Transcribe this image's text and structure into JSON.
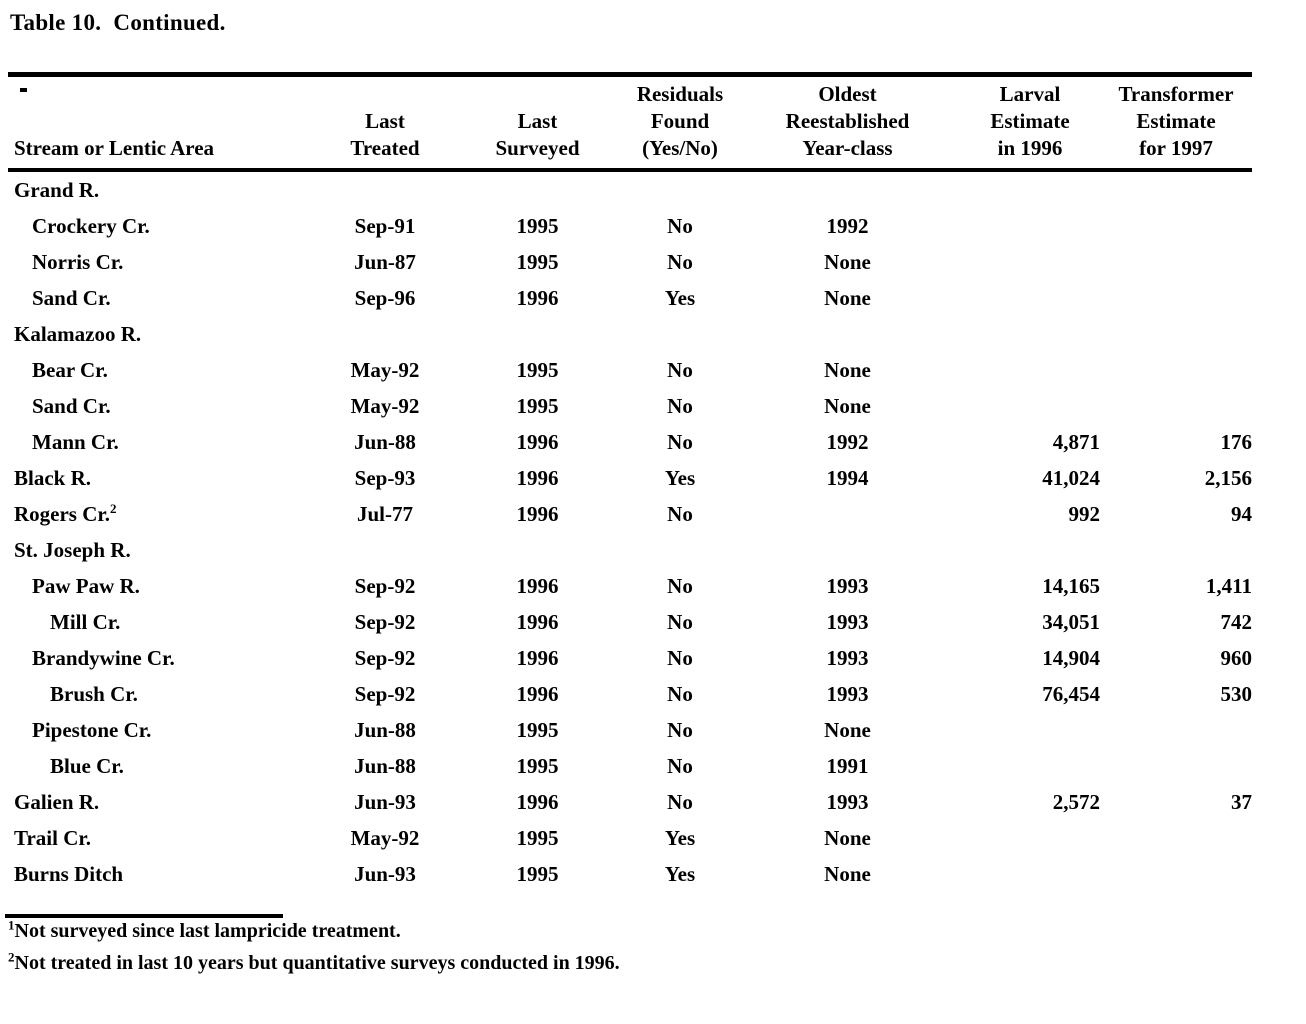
{
  "page": {
    "title": "Table 10.  Continued."
  },
  "table": {
    "columns": [
      {
        "id": "stream",
        "lines": [
          "Stream or Lentic Area"
        ]
      },
      {
        "id": "last_treated",
        "lines": [
          "Last",
          "Treated"
        ]
      },
      {
        "id": "last_surveyed",
        "lines": [
          "Last",
          "Surveyed"
        ]
      },
      {
        "id": "residuals_found",
        "lines": [
          "Residuals",
          "Found",
          "(Yes/No)"
        ]
      },
      {
        "id": "oldest_year_class",
        "lines": [
          "Oldest",
          "Reestablished",
          "Year-class"
        ]
      },
      {
        "id": "larval_estimate_1996",
        "lines": [
          "Larval",
          "Estimate",
          "in 1996"
        ]
      },
      {
        "id": "transformer_estimate_1997",
        "lines": [
          "Transformer",
          "Estimate",
          "for 1997"
        ]
      }
    ],
    "rows": [
      {
        "name": "Grand R.",
        "indent": 0,
        "last_treated": "",
        "last_surveyed": "",
        "residuals_found": "",
        "oldest_year_class": "",
        "larval_estimate_1996": "",
        "transformer_estimate_1997": ""
      },
      {
        "name": "Crockery Cr.",
        "indent": 1,
        "last_treated": "Sep-91",
        "last_surveyed": "1995",
        "residuals_found": "No",
        "oldest_year_class": "1992",
        "larval_estimate_1996": "",
        "transformer_estimate_1997": ""
      },
      {
        "name": "Norris Cr.",
        "indent": 1,
        "last_treated": "Jun-87",
        "last_surveyed": "1995",
        "residuals_found": "No",
        "oldest_year_class": "None",
        "larval_estimate_1996": "",
        "transformer_estimate_1997": ""
      },
      {
        "name": "Sand Cr.",
        "indent": 1,
        "last_treated": "Sep-96",
        "last_surveyed": "1996",
        "residuals_found": "Yes",
        "oldest_year_class": "None",
        "larval_estimate_1996": "",
        "transformer_estimate_1997": ""
      },
      {
        "name": "Kalamazoo R.",
        "indent": 0,
        "last_treated": "",
        "last_surveyed": "",
        "residuals_found": "",
        "oldest_year_class": "",
        "larval_estimate_1996": "",
        "transformer_estimate_1997": ""
      },
      {
        "name": "Bear Cr.",
        "indent": 1,
        "last_treated": "May-92",
        "last_surveyed": "1995",
        "residuals_found": "No",
        "oldest_year_class": "None",
        "larval_estimate_1996": "",
        "transformer_estimate_1997": ""
      },
      {
        "name": "Sand Cr.",
        "indent": 1,
        "last_treated": "May-92",
        "last_surveyed": "1995",
        "residuals_found": "No",
        "oldest_year_class": "None",
        "larval_estimate_1996": "",
        "transformer_estimate_1997": ""
      },
      {
        "name": "Mann Cr.",
        "indent": 1,
        "last_treated": "Jun-88",
        "last_surveyed": "1996",
        "residuals_found": "No",
        "oldest_year_class": "1992",
        "larval_estimate_1996": "4,871",
        "transformer_estimate_1997": "176"
      },
      {
        "name": "Black R.",
        "indent": 0,
        "last_treated": "Sep-93",
        "last_surveyed": "1996",
        "residuals_found": "Yes",
        "oldest_year_class": "1994",
        "larval_estimate_1996": "41,024",
        "transformer_estimate_1997": "2,156"
      },
      {
        "name": "Rogers Cr.",
        "name_sup": "2",
        "indent": 0,
        "last_treated": "Jul-77",
        "last_surveyed": "1996",
        "residuals_found": "No",
        "oldest_year_class": "",
        "larval_estimate_1996": "992",
        "transformer_estimate_1997": "94"
      },
      {
        "name": "St. Joseph R.",
        "indent": 0,
        "last_treated": "",
        "last_surveyed": "",
        "residuals_found": "",
        "oldest_year_class": "",
        "larval_estimate_1996": "",
        "transformer_estimate_1997": ""
      },
      {
        "name": "Paw Paw R.",
        "indent": 1,
        "last_treated": "Sep-92",
        "last_surveyed": "1996",
        "residuals_found": "No",
        "oldest_year_class": "1993",
        "larval_estimate_1996": "14,165",
        "transformer_estimate_1997": "1,411"
      },
      {
        "name": "Mill Cr.",
        "indent": 2,
        "last_treated": "Sep-92",
        "last_surveyed": "1996",
        "residuals_found": "No",
        "oldest_year_class": "1993",
        "larval_estimate_1996": "34,051",
        "transformer_estimate_1997": "742"
      },
      {
        "name": "Brandywine Cr.",
        "indent": 1,
        "last_treated": "Sep-92",
        "last_surveyed": "1996",
        "residuals_found": "No",
        "oldest_year_class": "1993",
        "larval_estimate_1996": "14,904",
        "transformer_estimate_1997": "960"
      },
      {
        "name": "Brush Cr.",
        "indent": 2,
        "last_treated": "Sep-92",
        "last_surveyed": "1996",
        "residuals_found": "No",
        "oldest_year_class": "1993",
        "larval_estimate_1996": "76,454",
        "transformer_estimate_1997": "530"
      },
      {
        "name": "Pipestone Cr.",
        "indent": 1,
        "last_treated": "Jun-88",
        "last_surveyed": "1995",
        "residuals_found": "No",
        "oldest_year_class": "None",
        "larval_estimate_1996": "",
        "transformer_estimate_1997": ""
      },
      {
        "name": "Blue Cr.",
        "indent": 2,
        "last_treated": "Jun-88",
        "last_surveyed": "1995",
        "residuals_found": "No",
        "oldest_year_class": "1991",
        "larval_estimate_1996": "",
        "transformer_estimate_1997": ""
      },
      {
        "name": "Galien R.",
        "indent": 0,
        "last_treated": "Jun-93",
        "last_surveyed": "1996",
        "residuals_found": "No",
        "oldest_year_class": "1993",
        "larval_estimate_1996": "2,572",
        "transformer_estimate_1997": "37"
      },
      {
        "name": "Trail Cr.",
        "indent": 0,
        "last_treated": "May-92",
        "last_surveyed": "1995",
        "residuals_found": "Yes",
        "oldest_year_class": "None",
        "larval_estimate_1996": "",
        "transformer_estimate_1997": ""
      },
      {
        "name": "Burns Ditch",
        "indent": 0,
        "last_treated": "Jun-93",
        "last_surveyed": "1995",
        "residuals_found": "Yes",
        "oldest_year_class": "None",
        "larval_estimate_1996": "",
        "transformer_estimate_1997": ""
      }
    ]
  },
  "footnotes": [
    {
      "sup": "1",
      "text": "Not surveyed since last lampricide treatment."
    },
    {
      "sup": "2",
      "text": "Not treated in last 10 years but quantitative surveys conducted in 1996."
    }
  ]
}
